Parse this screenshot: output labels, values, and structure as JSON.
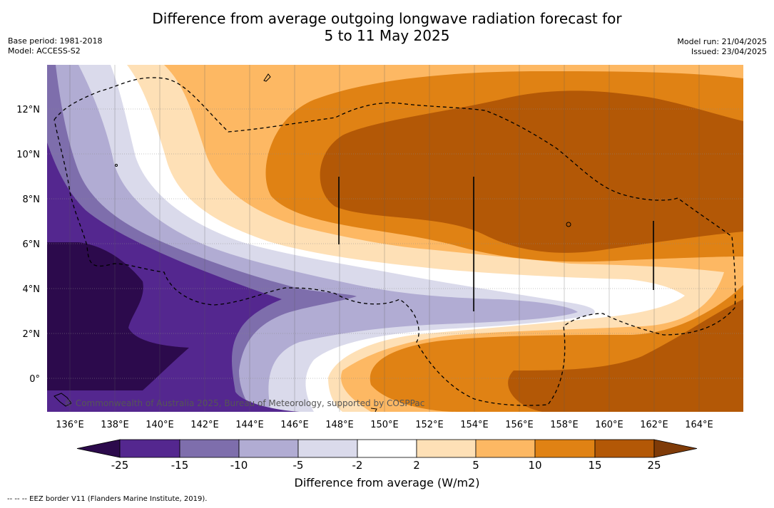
{
  "title_line1": "Difference from average outgoing longwave radiation forecast for",
  "title_line2": "5 to 11 May 2025",
  "meta_left": {
    "base_period": "Base period: 1981-2018",
    "model": "Model: ACCESS-S2"
  },
  "meta_right": {
    "model_run": "Model run: 21/04/2025",
    "issued": "Issued: 23/04/2025"
  },
  "map": {
    "lon_labels": [
      "136°E",
      "138°E",
      "140°E",
      "142°E",
      "144°E",
      "146°E",
      "148°E",
      "150°E",
      "152°E",
      "154°E",
      "156°E",
      "158°E",
      "160°E",
      "162°E",
      "164°E"
    ],
    "lat_labels": [
      "12°N",
      "10°N",
      "8°N",
      "6°N",
      "4°N",
      "2°N",
      "0°"
    ],
    "copyright": "© Commonwealth of Australia 2025, Bureau of Meteorology, supported by COSPPac"
  },
  "colorbar": {
    "ticks": [
      "-25",
      "-15",
      "-10",
      "-5",
      "-2",
      "2",
      "5",
      "10",
      "15",
      "25"
    ],
    "colors": [
      "#2c0a4c",
      "#54278f",
      "#7e6eac",
      "#b1acd3",
      "#dadaeb",
      "#ffffff",
      "#fee0b6",
      "#fdb863",
      "#e08214",
      "#b35806",
      "#7f3b08"
    ],
    "label": "Difference from average (W/m2)"
  },
  "footnote": "-- -- -- EEZ border V11 (Flanders Marine Institute, 2019)."
}
